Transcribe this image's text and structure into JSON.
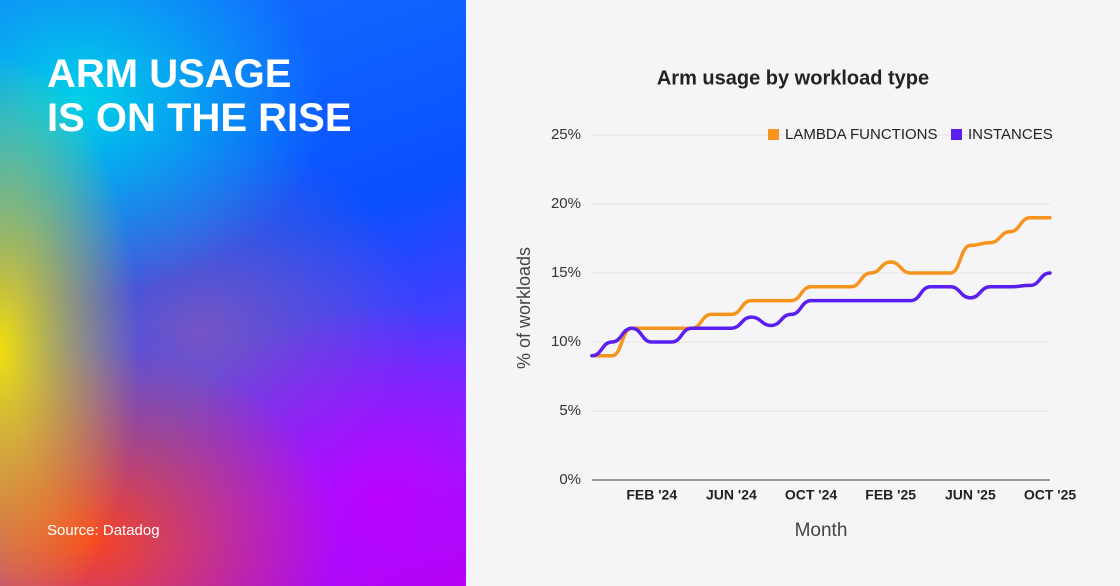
{
  "headline": [
    "ARM USAGE",
    "IS ON THE RISE"
  ],
  "source": "Source: Datadog",
  "chart_data": {
    "type": "line",
    "title": "Arm usage by workload type",
    "x_label": "Month",
    "y_label": "% of workloads",
    "categories": [
      null,
      null,
      null,
      "FEB '24",
      null,
      null,
      null,
      "JUN '24",
      null,
      null,
      null,
      "OCT '24",
      null,
      null,
      null,
      "FEB '25",
      null,
      null,
      null,
      "JUN '25",
      null,
      null,
      null,
      "OCT '25"
    ],
    "series": [
      {
        "name": "LAMBDA FUNCTIONS",
        "color": "#f7941d",
        "values": [
          9,
          9,
          11,
          11,
          11,
          11,
          12,
          12,
          13,
          13,
          13,
          14,
          14,
          14,
          15,
          15.8,
          15,
          15,
          15,
          17,
          17.2,
          18,
          19,
          19
        ]
      },
      {
        "name": "INSTANCES",
        "color": "#5a1ef0",
        "values": [
          9,
          10,
          11,
          10,
          10,
          11,
          11,
          11,
          11.8,
          11.2,
          12,
          13,
          13,
          13,
          13,
          13,
          13,
          14,
          14,
          13.2,
          14,
          14,
          14.1,
          15
        ]
      }
    ],
    "ylim": [
      0,
      25
    ],
    "yticks": [
      {
        "value": 0,
        "label": "0%"
      },
      {
        "value": 5,
        "label": "5%"
      },
      {
        "value": 10,
        "label": "10%"
      },
      {
        "value": 15,
        "label": "15%"
      },
      {
        "value": 20,
        "label": "20%"
      },
      {
        "value": 25,
        "label": "25%"
      }
    ],
    "grid": true,
    "legend": "top-right"
  }
}
